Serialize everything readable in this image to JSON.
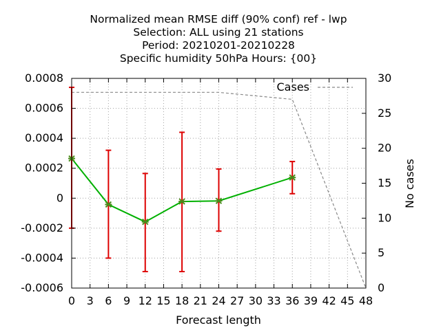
{
  "chart_data": {
    "type": "line",
    "title_lines": [
      "Normalized mean RMSE diff (90% conf) ref - lwp",
      "Selection: ALL using    21 stations",
      "Period: 20210201-20210228",
      "Specific humidity 50hPa   Hours: {00}"
    ],
    "xlabel": "Forecast length",
    "ylabel_right": "No cases",
    "xlim": [
      0,
      48
    ],
    "ylim": [
      -0.0006,
      0.0008
    ],
    "y2lim": [
      0,
      30
    ],
    "x_ticks": [
      0,
      3,
      6,
      9,
      12,
      15,
      18,
      21,
      24,
      27,
      30,
      33,
      36,
      39,
      42,
      45,
      48
    ],
    "y_ticks": [
      -0.0006,
      -0.0004,
      -0.0002,
      0,
      0.0002,
      0.0004,
      0.0006,
      0.0008
    ],
    "y_tick_labels": [
      "-0.0006",
      "-0.0004",
      "-0.0002",
      "0",
      "0.0002",
      "0.0004",
      "0.0006",
      "0.0008"
    ],
    "y2_ticks": [
      0,
      5,
      10,
      15,
      20,
      25,
      30
    ],
    "grid": true,
    "legend_position": "top-right",
    "series": [
      {
        "name": "",
        "kind": "line-errorbar",
        "color": "#00b000",
        "errorbar_color": "#dd0000",
        "marker_color": "#4a8a1a",
        "x": [
          0,
          6,
          12,
          18,
          24,
          36
        ],
        "y": [
          0.000265,
          -4.2e-05,
          -0.000158,
          -2.2e-05,
          -1.8e-05,
          0.000138
        ],
        "err_low": [
          -0.0002,
          -0.0004,
          -0.00049,
          -0.00049,
          -0.00022,
          3e-05
        ],
        "err_high": [
          0.00074,
          0.00032,
          0.000165,
          0.00044,
          0.000195,
          0.000245
        ]
      },
      {
        "name": "Cases",
        "kind": "dashed-line",
        "axis": "right",
        "color": "#888888",
        "x": [
          0,
          24,
          36,
          48
        ],
        "y": [
          28,
          28,
          27,
          0
        ]
      }
    ]
  }
}
